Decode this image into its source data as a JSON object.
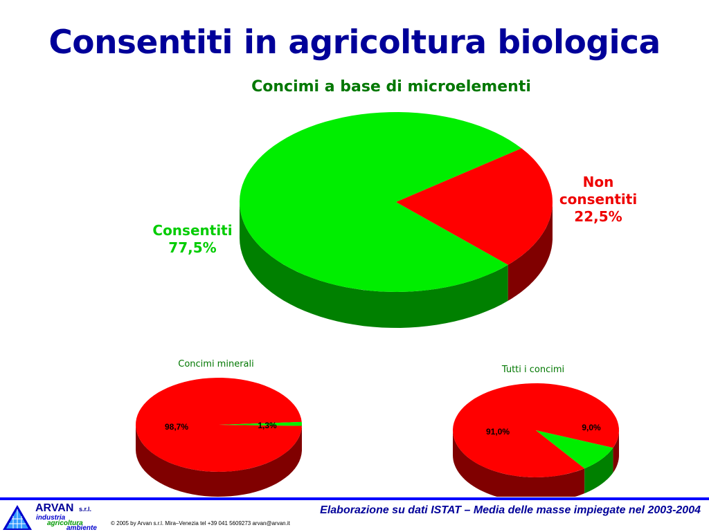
{
  "title": "Consentiti in agricoltura biologica",
  "colors": {
    "title": "#000099",
    "green": "#00ee00",
    "green_side": "#008000",
    "red": "#ff0000",
    "red_side": "#800000"
  },
  "chart_data": [
    {
      "type": "pie",
      "title": "Concimi a base di microelementi",
      "slices": [
        {
          "label": "Consentiti",
          "value": 77.5,
          "value_label": "77,5%",
          "color": "#00ee00"
        },
        {
          "label": "Non consentiti",
          "value": 22.5,
          "value_label": "22,5%",
          "color": "#ff0000"
        }
      ]
    },
    {
      "type": "pie",
      "title": "Concimi minerali",
      "slices": [
        {
          "label": "",
          "value": 98.7,
          "value_label": "98,7%",
          "color": "#ff0000"
        },
        {
          "label": "",
          "value": 1.3,
          "value_label": "1,3%",
          "color": "#00ee00"
        }
      ]
    },
    {
      "type": "pie",
      "title": "Tutti i concimi",
      "slices": [
        {
          "label": "",
          "value": 91.0,
          "value_label": "91,0%",
          "color": "#ff0000"
        },
        {
          "label": "",
          "value": 9.0,
          "value_label": "9,0%",
          "color": "#00ee00"
        }
      ]
    }
  ],
  "footer": {
    "source": "Elaborazione su dati ISTAT – Media delle masse impiegate nel 2003-2004",
    "copyright": "© 2005 by Arvan s.r.l. Mira–Venezia tel +39 041 5609273 arvan@arvan.it",
    "logo": {
      "name": "ARVAN",
      "suffix": "s.r.l.",
      "line1": "industria",
      "line2": "agricoltura",
      "line3": "ambiente"
    }
  }
}
